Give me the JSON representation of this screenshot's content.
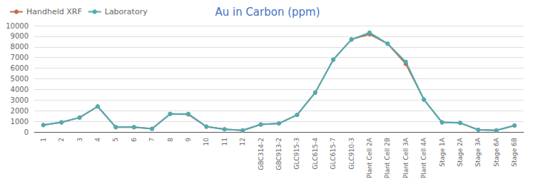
{
  "chart_data": {
    "type": "line",
    "title": "Au in Carbon (ppm)",
    "title_color": "#4472C4",
    "categories": [
      "1",
      "2",
      "3",
      "4",
      "5",
      "6",
      "7",
      "8",
      "9",
      "10",
      "11",
      "12",
      "GBC314-2",
      "GBC913-2",
      "GLC915-3",
      "GLC615-4",
      "GLC615-7",
      "GLC910-3",
      "Plant Cell 2A",
      "Plant Cell 2B",
      "Plant Cell 3A",
      "Plant Cell 4A",
      "Stage 1A",
      "Stage 2A",
      "Stage 3A",
      "Stage 6A",
      "Stage 6B"
    ],
    "series": [
      {
        "name": "Handheld XRF",
        "color": "#C0704A",
        "marker": "circle",
        "values": [
          650,
          900,
          1350,
          2400,
          450,
          450,
          300,
          1700,
          1650,
          500,
          250,
          150,
          700,
          800,
          1600,
          3700,
          6800,
          8700,
          9200,
          8300,
          6400,
          3050,
          900,
          850,
          200,
          150,
          600
        ]
      },
      {
        "name": "Laboratory",
        "color": "#4BADB5",
        "marker": "circle",
        "values": [
          650,
          900,
          1350,
          2400,
          450,
          450,
          300,
          1700,
          1700,
          500,
          250,
          150,
          700,
          800,
          1600,
          3700,
          6800,
          8700,
          9350,
          8300,
          6600,
          3050,
          900,
          850,
          200,
          150,
          600
        ]
      }
    ],
    "ylim": [
      0,
      10000
    ],
    "yticks": [
      0,
      1000,
      2000,
      3000,
      4000,
      5000,
      6000,
      7000,
      8000,
      9000,
      10000
    ],
    "grid": true,
    "legend": "upper left"
  }
}
